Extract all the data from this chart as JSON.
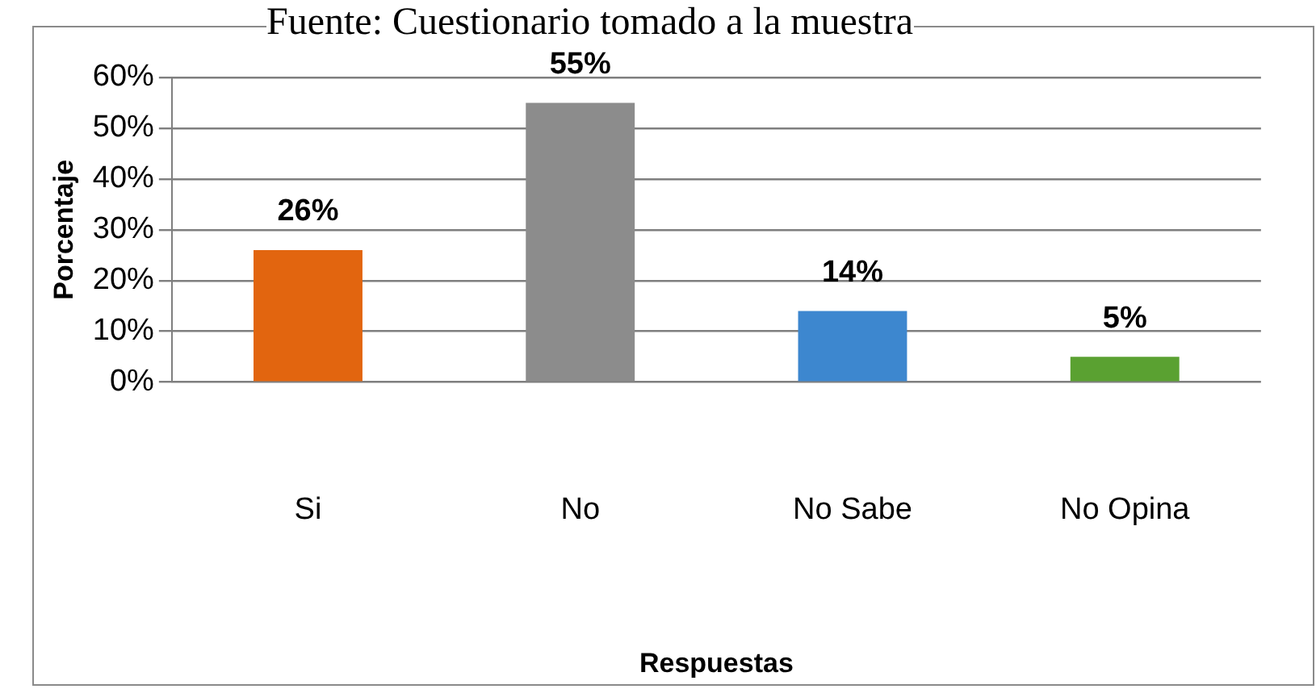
{
  "chart_data": {
    "type": "bar",
    "annotations": [
      "Fuente: Cuestionario tomado a la muestra"
    ],
    "xlabel": "Respuestas",
    "ylabel": "Porcentaje",
    "categories": [
      "Si",
      "No",
      "No Sabe",
      "No Opina"
    ],
    "values": [
      26,
      55,
      14,
      5
    ],
    "colors": [
      "#e2650f",
      "#8c8c8c",
      "#3d87cf",
      "#5aa131"
    ],
    "value_labels": [
      "26%",
      "55%",
      "14%",
      "5%"
    ],
    "ylim": [
      0,
      60
    ],
    "yticks": [
      {
        "value": 0,
        "label": "0%"
      },
      {
        "value": 10,
        "label": "10%"
      },
      {
        "value": 20,
        "label": "20%"
      },
      {
        "value": 30,
        "label": "30%"
      },
      {
        "value": 40,
        "label": "40%"
      },
      {
        "value": 50,
        "label": "50%"
      },
      {
        "value": 60,
        "label": "60%"
      }
    ],
    "grid": "y",
    "legend": false
  }
}
